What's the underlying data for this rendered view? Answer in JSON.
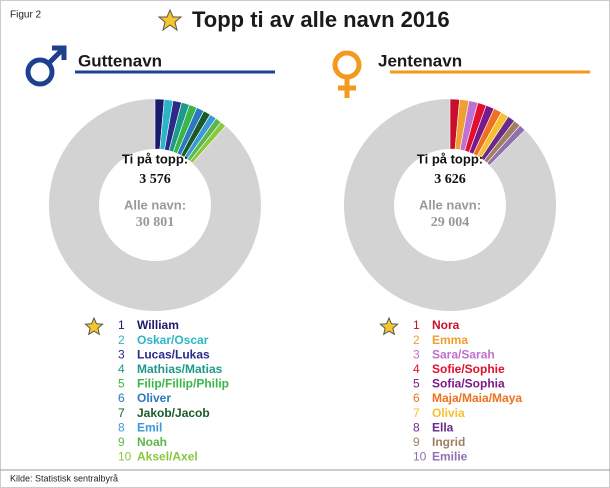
{
  "figure_label": "Figur 2",
  "title": "Topp ti av alle navn 2016",
  "source": "Kilde: Statistisk sentralbyrå",
  "chart_data": [
    {
      "type": "donut",
      "title": "Guttenavn",
      "line_color": "#1f3f8f",
      "top_label": "Ti på topp:",
      "top_total": {
        "value": 3576,
        "label": "3 576"
      },
      "all_label": "Alle navn:",
      "all_total": {
        "value": 30801,
        "label": "30 801"
      },
      "ranks": [
        1,
        2,
        3,
        4,
        5,
        6,
        7,
        8,
        9,
        10
      ],
      "categories": [
        "William",
        "Oskar/Oscar",
        "Lucas/Lukas",
        "Mathias/Matias",
        "Filip/Fillip/Philip",
        "Oliver",
        "Jakob/Jacob",
        "Emil",
        "Noah",
        "Aksel/Axel"
      ],
      "values": [
        430,
        410,
        400,
        380,
        370,
        360,
        340,
        320,
        290,
        276
      ],
      "colors": [
        "#1a1a6e",
        "#2bb5c8",
        "#2a2a8a",
        "#1e9a8a",
        "#3ab54a",
        "#2a7abf",
        "#1a5a2a",
        "#3a9ad9",
        "#5ab848",
        "#8cc63f"
      ]
    },
    {
      "type": "donut",
      "title": "Jentenavn",
      "line_color": "#f39a1e",
      "top_label": "Ti på topp:",
      "top_total": {
        "value": 3626,
        "label": "3 626"
      },
      "all_label": "Alle navn:",
      "all_total": {
        "value": 29004,
        "label": "29 004"
      },
      "ranks": [
        1,
        2,
        3,
        4,
        5,
        6,
        7,
        8,
        9,
        10
      ],
      "categories": [
        "Nora",
        "Emma",
        "Sara/Sarah",
        "Sofie/Sophie",
        "Sofia/Sophia",
        "Maja/Maia/Maya",
        "Olivia",
        "Ella",
        "Ingrid",
        "Emilie"
      ],
      "values": [
        420,
        410,
        400,
        380,
        370,
        360,
        350,
        330,
        310,
        296
      ],
      "colors": [
        "#c8102e",
        "#f0a030",
        "#c070d0",
        "#e0102e",
        "#7a1a8a",
        "#f07020",
        "#f8c030",
        "#6a2a8a",
        "#a08060",
        "#9070b0"
      ]
    }
  ]
}
